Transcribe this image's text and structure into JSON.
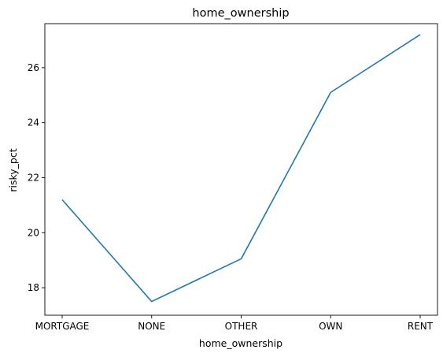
{
  "chart_data": {
    "type": "line",
    "title": "home_ownership",
    "xlabel": "home_ownership",
    "ylabel": "risky_pct",
    "categories": [
      "MORTGAGE",
      "NONE",
      "OTHER",
      "OWN",
      "RENT"
    ],
    "series": [
      {
        "values": [
          21.2,
          17.5,
          19.05,
          25.1,
          27.2
        ]
      }
    ],
    "ylim": [
      17.0,
      27.6
    ],
    "yticks": [
      18,
      20,
      22,
      24,
      26
    ],
    "grid": false,
    "line_color": "#1f77b4"
  }
}
